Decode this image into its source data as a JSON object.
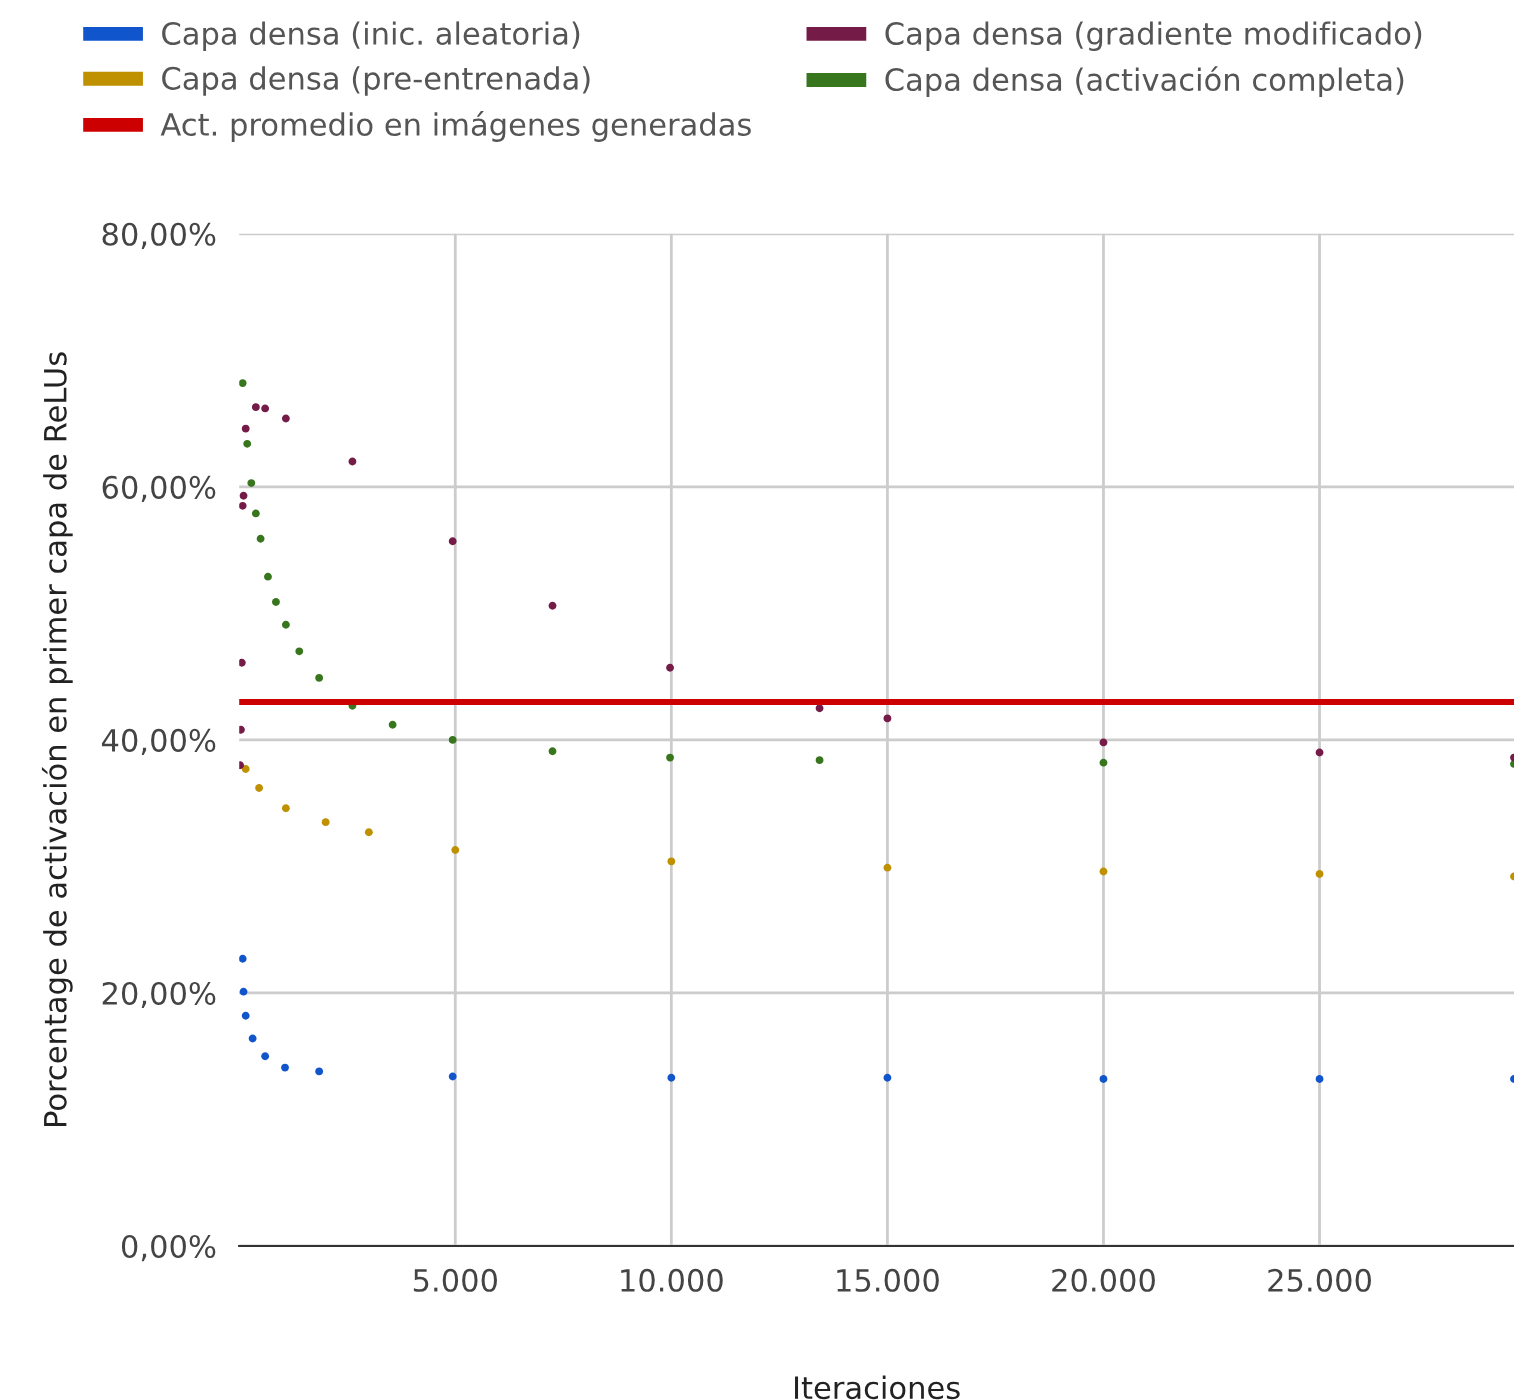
{
  "chart_data": {
    "type": "scatter",
    "xlabel": "Iteraciones",
    "ylabel": "Porcentage de activación en primer capa de ReLUs",
    "xlim": [
      0,
      29500
    ],
    "ylim": [
      0,
      80
    ],
    "xticks": [
      {
        "value": 5000,
        "label": "5.000"
      },
      {
        "value": 10000,
        "label": "10.000"
      },
      {
        "value": 15000,
        "label": "15.000"
      },
      {
        "value": 20000,
        "label": "20.000"
      },
      {
        "value": 25000,
        "label": "25.000"
      }
    ],
    "yticks": [
      {
        "value": 0,
        "label": "0,00%"
      },
      {
        "value": 20,
        "label": "20,00%"
      },
      {
        "value": 40,
        "label": "40,00%"
      },
      {
        "value": 60,
        "label": "60,00%"
      },
      {
        "value": 80,
        "label": "80,00%"
      }
    ],
    "grid": true,
    "legend": "top",
    "marker": "circle",
    "series": [
      {
        "name": "Capa densa (inic. aleatoria)",
        "color": "#1155cc",
        "x": [
          80,
          100,
          150,
          310,
          600,
          1060,
          1850,
          4940,
          10000,
          15000,
          20000,
          25000,
          29500
        ],
        "values": [
          22.7,
          20.1,
          18.2,
          16.4,
          15.0,
          14.1,
          13.8,
          13.4,
          13.3,
          13.3,
          13.2,
          13.2,
          13.2
        ]
      },
      {
        "name": "Capa densa (gradiente modificado)",
        "color": "#741b47",
        "x": [
          20,
          40,
          60,
          80,
          100,
          150,
          385,
          600,
          1080,
          2620,
          4940,
          7250,
          9970,
          13430,
          15000,
          20000,
          25000,
          29500
        ],
        "values": [
          38.0,
          40.8,
          46.1,
          58.5,
          59.3,
          64.6,
          66.3,
          66.2,
          65.4,
          62.0,
          55.7,
          50.6,
          45.7,
          42.5,
          41.7,
          39.8,
          39.0,
          38.6
        ]
      },
      {
        "name": "Capa densa (pre-entrenada)",
        "color": "#bf9000",
        "x": [
          150,
          460,
          1080,
          2000,
          3000,
          5000,
          10000,
          15000,
          20000,
          25000,
          29500
        ],
        "values": [
          37.7,
          36.2,
          34.6,
          33.5,
          32.7,
          31.3,
          30.4,
          29.9,
          29.6,
          29.4,
          29.2
        ]
      },
      {
        "name": "Capa densa (activación completa)",
        "color": "#38761d",
        "x": [
          80,
          185,
          280,
          385,
          495,
          665,
          850,
          1080,
          1390,
          1850,
          2620,
          3550,
          4940,
          7250,
          9970,
          13430,
          20000,
          29500
        ],
        "values": [
          68.2,
          63.4,
          60.3,
          57.9,
          55.9,
          52.9,
          50.9,
          49.1,
          47.0,
          44.9,
          42.7,
          41.2,
          40.0,
          39.1,
          38.6,
          38.4,
          38.2,
          38.1
        ]
      },
      {
        "name": "Act. promedio en imágenes generadas",
        "color": "#cc0000",
        "type": "line",
        "marker": "none",
        "x": [
          0,
          29500
        ],
        "values": [
          43,
          43
        ]
      }
    ]
  }
}
